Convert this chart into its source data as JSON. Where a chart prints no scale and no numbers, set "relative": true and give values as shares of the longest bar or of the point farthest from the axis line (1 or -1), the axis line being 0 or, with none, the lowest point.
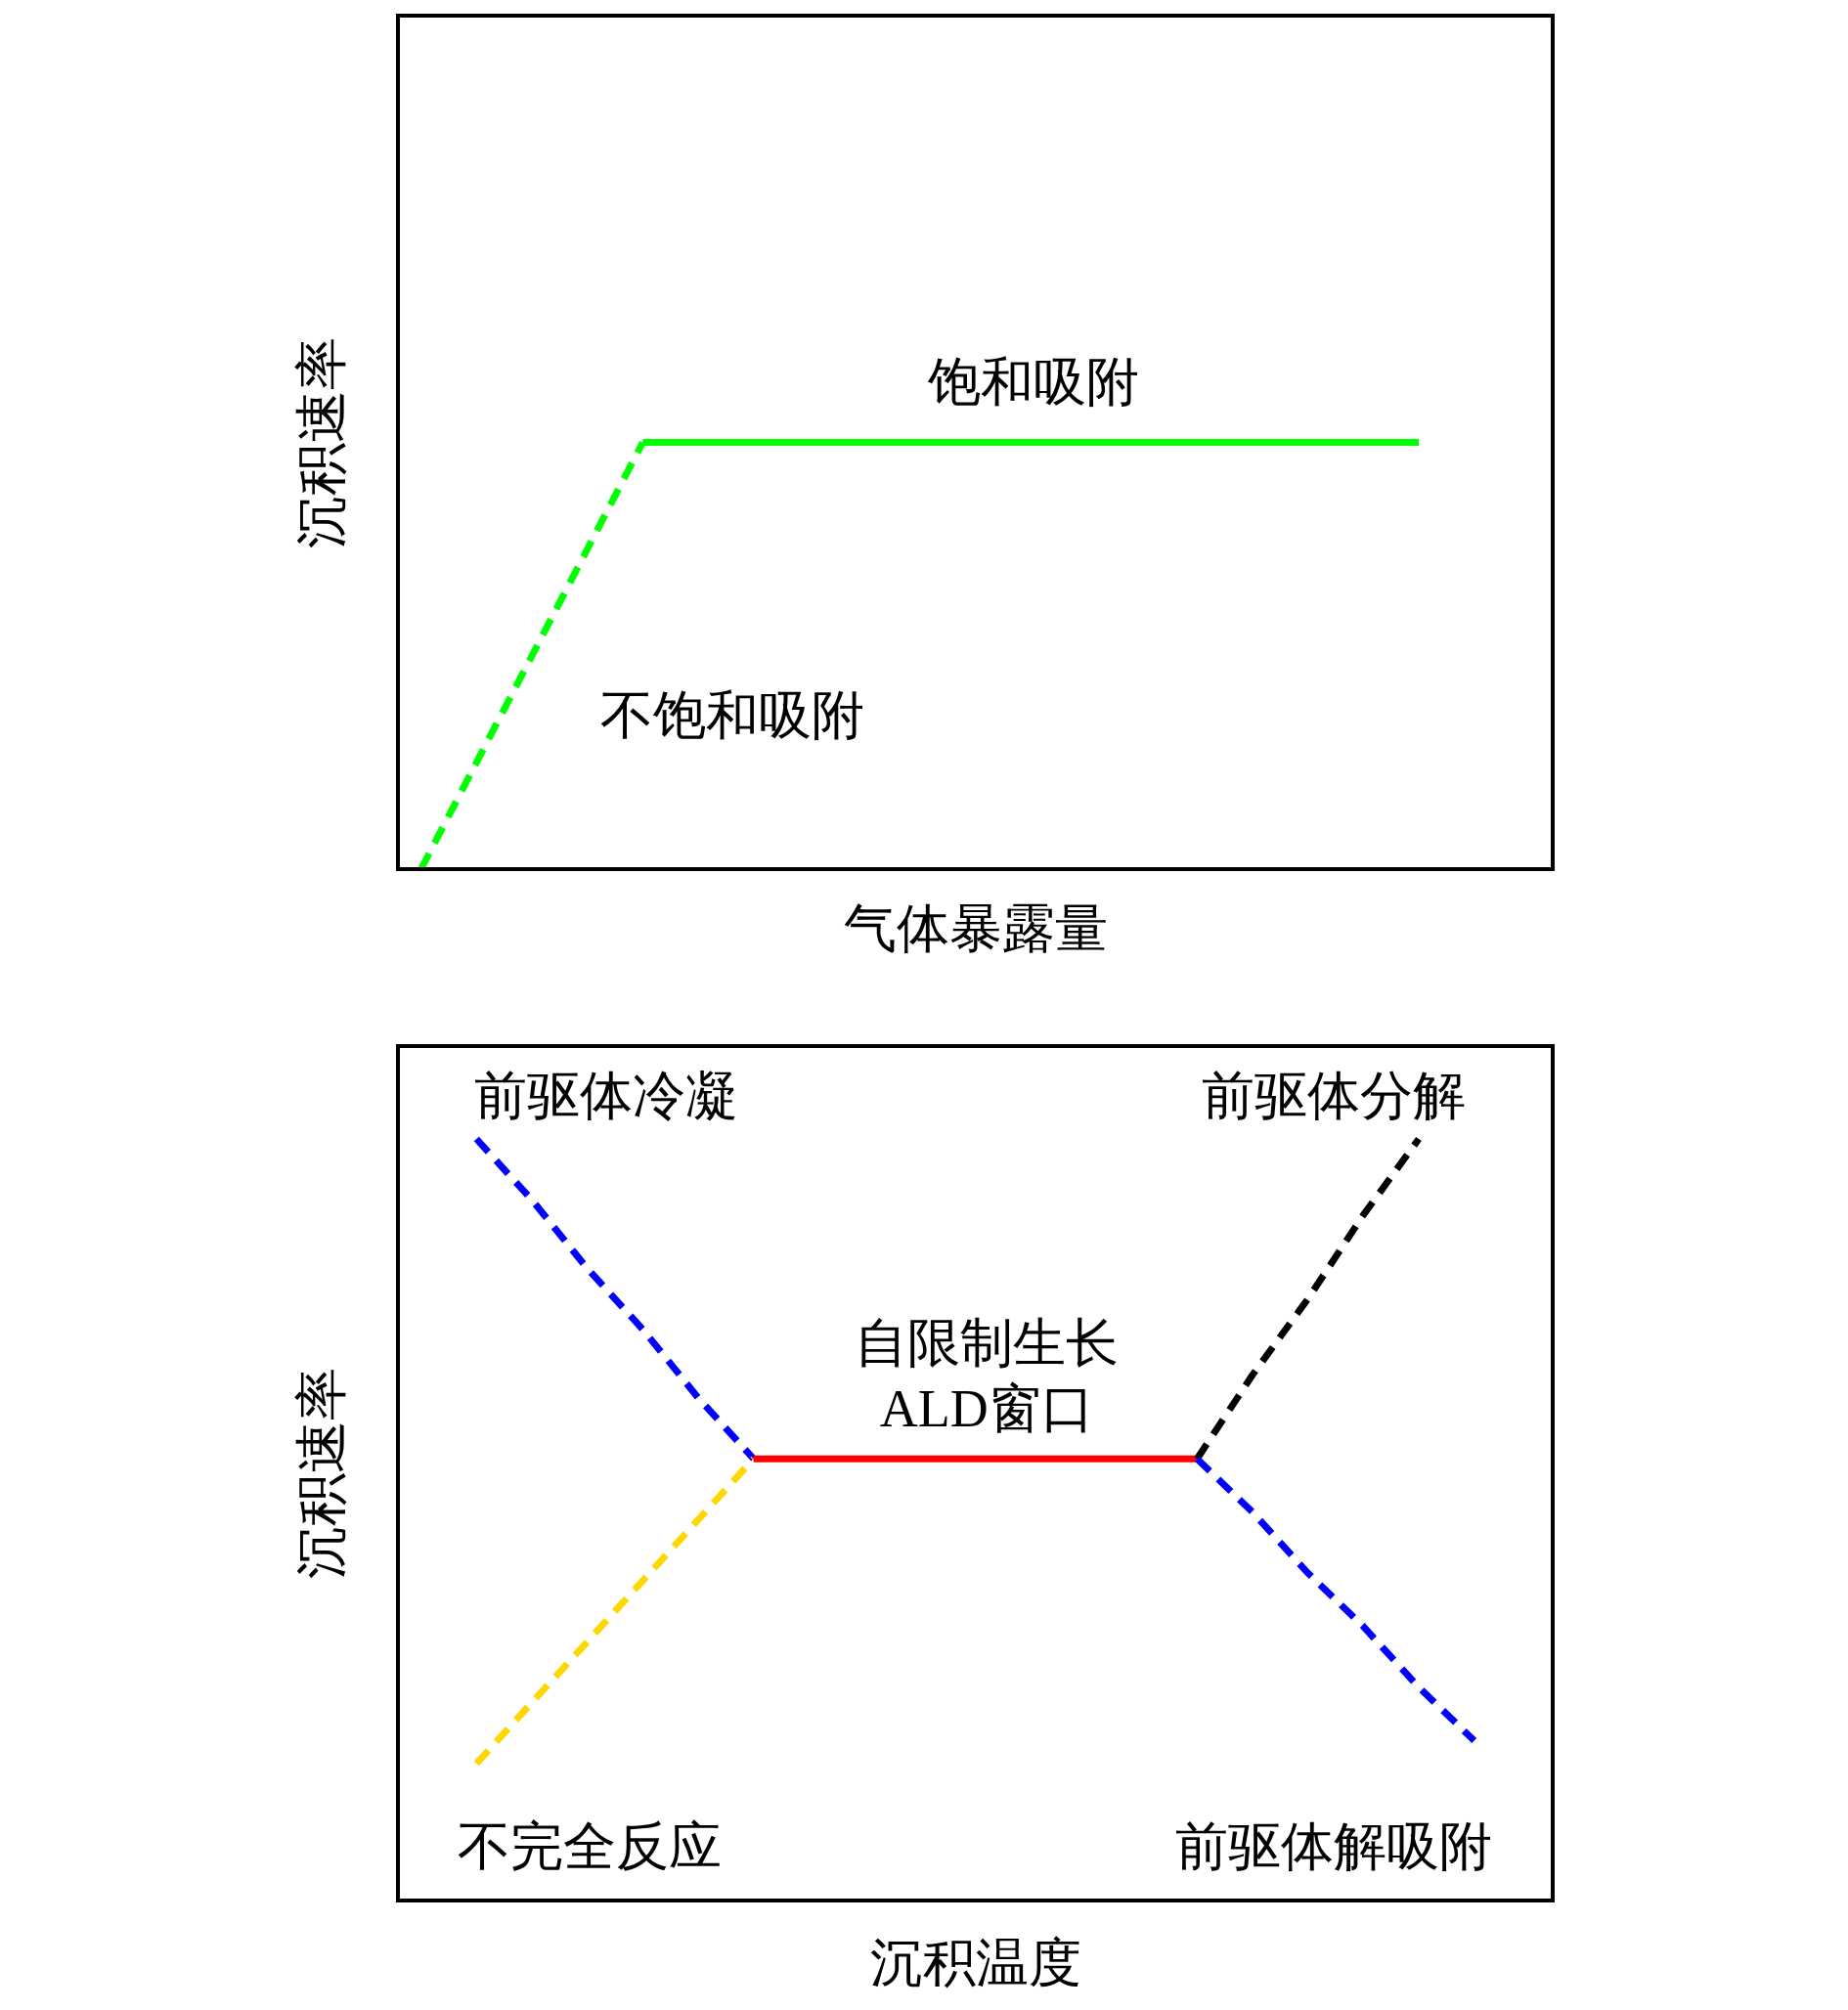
{
  "chart_data": [
    {
      "type": "line",
      "relative": true,
      "xlabel": "气体暴露量",
      "ylabel": "沉积速率",
      "categories": [
        null,
        null,
        null,
        null,
        null,
        null,
        null,
        null,
        null,
        null,
        null
      ],
      "series": [
        {
          "color": "#00ff00",
          "line_style": "dashed",
          "values": [
            0,
            0.5,
            1,
            null,
            null,
            null,
            null,
            null,
            null,
            null,
            null
          ]
        },
        {
          "color": "#00ff00",
          "line_style": "solid",
          "values": [
            null,
            null,
            1,
            1,
            1,
            1,
            1,
            1,
            1,
            1,
            null
          ]
        }
      ],
      "annotations": [
        "饱和吸附",
        "不饱和吸附"
      ]
    },
    {
      "type": "line",
      "relative": true,
      "xlabel": "沉积温度",
      "ylabel": "沉积速率",
      "categories": [
        null,
        null,
        null,
        null,
        null,
        null,
        null,
        null,
        null,
        null,
        null,
        null,
        null,
        null,
        null,
        null,
        null,
        null,
        null,
        null,
        null
      ],
      "series": [
        {
          "color": "#0000ff",
          "line_style": "dashed",
          "values": [
            null,
            1.0,
            0.92,
            0.83,
            0.75,
            0.66,
            0.58,
            null,
            null,
            null,
            null,
            null,
            null,
            null,
            null,
            null,
            null,
            null,
            null,
            null,
            null
          ]
        },
        {
          "color": "#ffd700",
          "line_style": "dashed",
          "values": [
            null,
            0.18,
            0.26,
            0.34,
            0.42,
            0.5,
            0.58,
            null,
            null,
            null,
            null,
            null,
            null,
            null,
            null,
            null,
            null,
            null,
            null,
            null,
            null
          ]
        },
        {
          "color": "#ff0000",
          "line_style": "solid",
          "values": [
            null,
            null,
            null,
            null,
            null,
            null,
            0.58,
            0.58,
            0.58,
            0.58,
            0.58,
            0.58,
            0.58,
            0.58,
            0.58,
            null,
            null,
            null,
            null,
            null,
            null
          ]
        },
        {
          "color": "#000000",
          "line_style": "dashed",
          "values": [
            null,
            null,
            null,
            null,
            null,
            null,
            null,
            null,
            null,
            null,
            null,
            null,
            null,
            null,
            0.58,
            0.69,
            0.79,
            0.9,
            1.0,
            null,
            null
          ]
        },
        {
          "color": "#0000ff",
          "line_style": "dashed",
          "values": [
            null,
            null,
            null,
            null,
            null,
            null,
            null,
            null,
            null,
            null,
            null,
            null,
            null,
            null,
            0.58,
            0.51,
            0.43,
            0.36,
            0.28,
            0.21,
            null
          ]
        }
      ],
      "annotations": [
        "前驱体冷凝",
        "前驱体分解",
        "自限制生长\nALD窗口",
        "不完全反应",
        "前驱体解吸附"
      ]
    }
  ]
}
